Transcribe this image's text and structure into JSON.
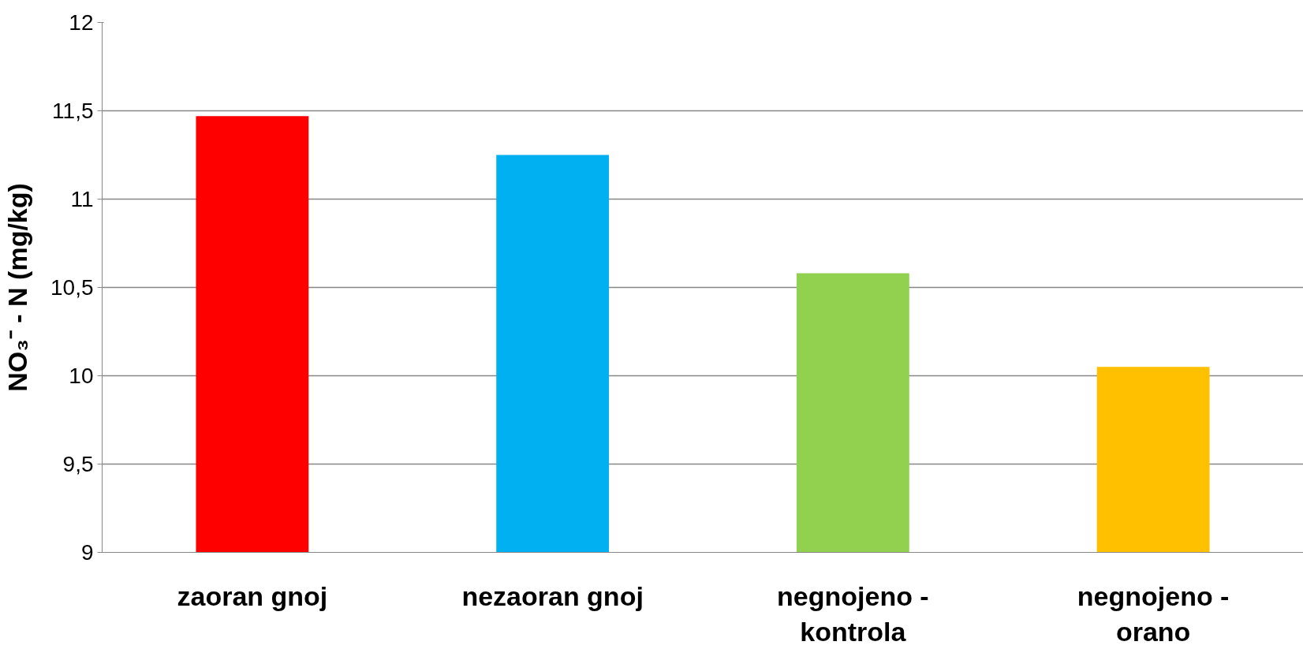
{
  "chart_data": {
    "type": "bar",
    "ylabel": "NO₃⁻ - N (mg/kg)",
    "categories": [
      "zaoran gnoj",
      "nezaoran gnoj",
      "negnojeno -\nkontrola",
      "negnojeno -\norano"
    ],
    "values": [
      11.47,
      11.25,
      10.58,
      10.05
    ],
    "colors": [
      "#ff0000",
      "#00b0f0",
      "#92d050",
      "#ffc000"
    ],
    "ylim": [
      9,
      12
    ],
    "yticks": [
      9,
      {
        "value": 9.5,
        "label": "9,5"
      },
      10,
      {
        "value": 10.5,
        "label": "10,5"
      },
      11,
      {
        "value": 11.5,
        "label": "11,5"
      },
      12
    ],
    "grid": "y"
  }
}
